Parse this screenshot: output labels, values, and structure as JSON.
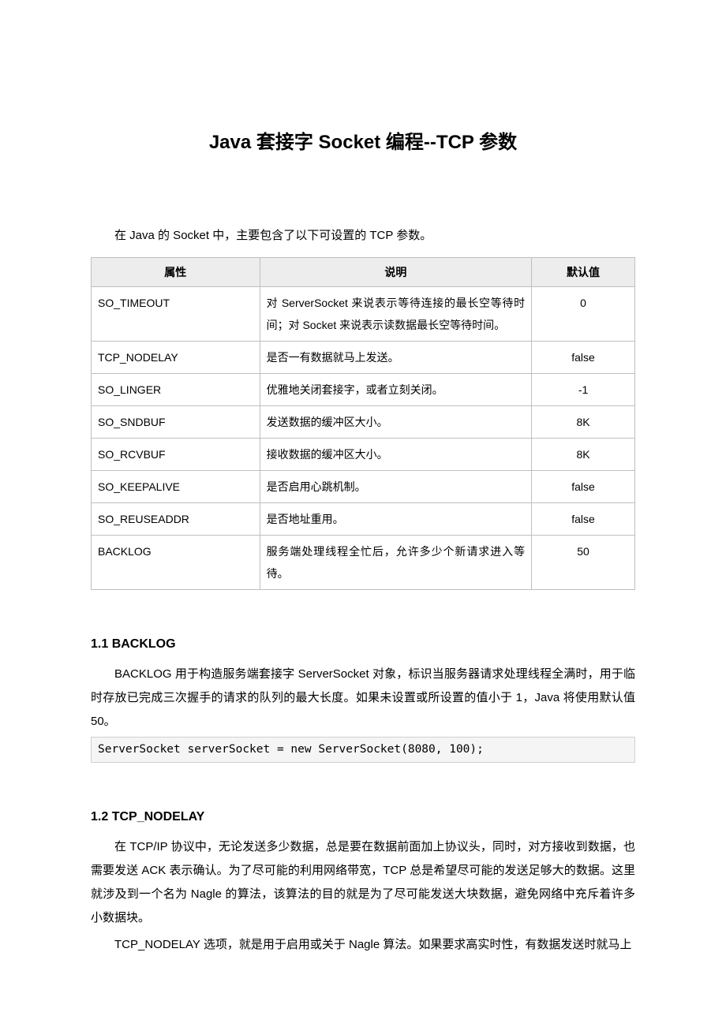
{
  "title": "Java 套接字 Socket 编程--TCP 参数",
  "intro": "在 Java 的 Socket 中，主要包含了以下可设置的 TCP 参数。",
  "table": {
    "headers": {
      "attr": "属性",
      "desc": "说明",
      "def": "默认值"
    },
    "rows": [
      {
        "attr": "SO_TIMEOUT",
        "desc": "对 ServerSocket 来说表示等待连接的最长空等待时间；对 Socket 来说表示读数据最长空等待时间。",
        "def": "0"
      },
      {
        "attr": "TCP_NODELAY",
        "desc": "是否一有数据就马上发送。",
        "def": "false"
      },
      {
        "attr": "SO_LINGER",
        "desc": "优雅地关闭套接字，或者立刻关闭。",
        "def": "-1"
      },
      {
        "attr": "SO_SNDBUF",
        "desc": "发送数据的缓冲区大小。",
        "def": "8K"
      },
      {
        "attr": "SO_RCVBUF",
        "desc": "接收数据的缓冲区大小。",
        "def": "8K"
      },
      {
        "attr": "SO_KEEPALIVE",
        "desc": "是否启用心跳机制。",
        "def": "false"
      },
      {
        "attr": "SO_REUSEADDR",
        "desc": "是否地址重用。",
        "def": "false"
      },
      {
        "attr": "BACKLOG",
        "desc": "服务端处理线程全忙后，允许多少个新请求进入等待。",
        "def": "50"
      }
    ]
  },
  "sections": [
    {
      "heading": "1.1 BACKLOG",
      "paragraphs": [
        "BACKLOG 用于构造服务端套接字 ServerSocket 对象，标识当服务器请求处理线程全满时，用于临时存放已完成三次握手的请求的队列的最大长度。如果未设置或所设置的值小于 1，Java 将使用默认值50。"
      ],
      "code": "ServerSocket serverSocket = new ServerSocket(8080, 100);"
    },
    {
      "heading": "1.2 TCP_NODELAY",
      "paragraphs": [
        "在 TCP/IP 协议中，无论发送多少数据，总是要在数据前面加上协议头，同时，对方接收到数据，也需要发送 ACK 表示确认。为了尽可能的利用网络带宽，TCP 总是希望尽可能的发送足够大的数据。这里就涉及到一个名为 Nagle 的算法，该算法的目的就是为了尽可能发送大块数据，避免网络中充斥着许多小数据块。",
        "TCP_NODELAY 选项，就是用于启用或关于 Nagle 算法。如果要求高实时性，有数据发送时就马上"
      ],
      "code": null
    }
  ]
}
